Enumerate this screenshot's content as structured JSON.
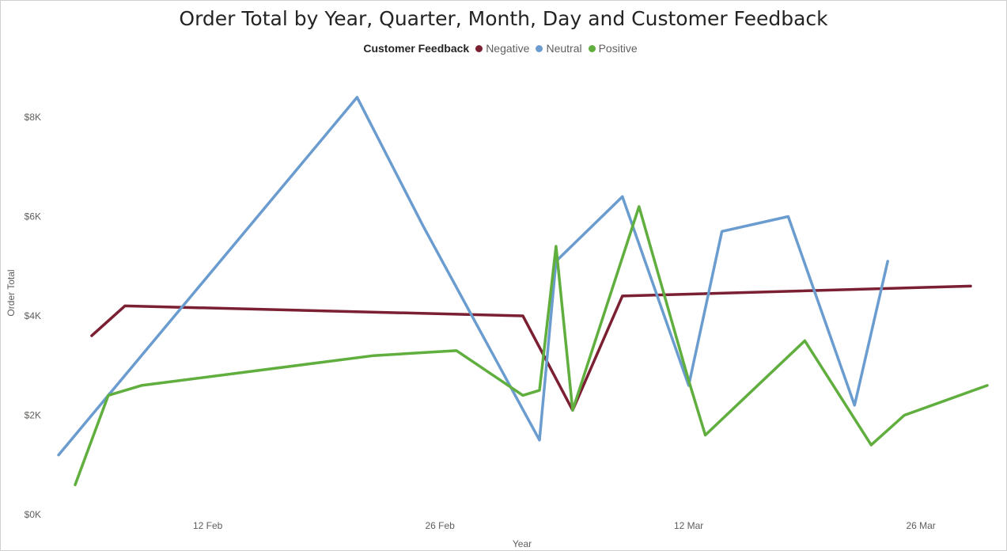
{
  "chart_data": {
    "type": "line",
    "title": "Order Total by Year, Quarter, Month, Day and Customer Feedback",
    "xlabel": "Year",
    "ylabel": "Order Total",
    "ylim": [
      0,
      8000
    ],
    "yticks": [
      {
        "value": 0,
        "label": "$0K"
      },
      {
        "value": 2000,
        "label": "$2K"
      },
      {
        "value": 4000,
        "label": "$4K"
      },
      {
        "value": 6000,
        "label": "$6K"
      },
      {
        "value": 8000,
        "label": "$8K"
      }
    ],
    "xlim": [
      "2024-02-03",
      "2024-03-30"
    ],
    "xticks": [
      {
        "date": "2024-02-12",
        "label": "12 Feb"
      },
      {
        "date": "2024-02-26",
        "label": "26 Feb"
      },
      {
        "date": "2024-03-12",
        "label": "12 Mar"
      },
      {
        "date": "2024-03-26",
        "label": "26 Mar"
      }
    ],
    "grid": false,
    "legend": {
      "title": "Customer Feedback",
      "position": "top-center"
    },
    "series": [
      {
        "name": "Negative",
        "color": "#7b1f32",
        "points": [
          {
            "date": "2024-02-05",
            "value": 3600
          },
          {
            "date": "2024-02-07",
            "value": 4200
          },
          {
            "date": "2024-03-02",
            "value": 4000
          },
          {
            "date": "2024-03-05",
            "value": 2100
          },
          {
            "date": "2024-03-08",
            "value": 4400
          },
          {
            "date": "2024-03-29",
            "value": 4600
          }
        ]
      },
      {
        "name": "Neutral",
        "color": "#6b9ccf",
        "points": [
          {
            "date": "2024-02-03",
            "value": 1200
          },
          {
            "date": "2024-02-21",
            "value": 8400
          },
          {
            "date": "2024-02-25",
            "value": 5800
          },
          {
            "date": "2024-03-03",
            "value": 1500
          },
          {
            "date": "2024-03-04",
            "value": 5100
          },
          {
            "date": "2024-03-08",
            "value": 6400
          },
          {
            "date": "2024-03-12",
            "value": 2600
          },
          {
            "date": "2024-03-14",
            "value": 5700
          },
          {
            "date": "2024-03-18",
            "value": 6000
          },
          {
            "date": "2024-03-22",
            "value": 2200
          },
          {
            "date": "2024-03-24",
            "value": 5100
          }
        ]
      },
      {
        "name": "Positive",
        "color": "#5fae3e",
        "points": [
          {
            "date": "2024-02-04",
            "value": 600
          },
          {
            "date": "2024-02-06",
            "value": 2400
          },
          {
            "date": "2024-02-08",
            "value": 2600
          },
          {
            "date": "2024-02-22",
            "value": 3200
          },
          {
            "date": "2024-02-27",
            "value": 3300
          },
          {
            "date": "2024-03-02",
            "value": 2400
          },
          {
            "date": "2024-03-03",
            "value": 2500
          },
          {
            "date": "2024-03-04",
            "value": 5400
          },
          {
            "date": "2024-03-05",
            "value": 2100
          },
          {
            "date": "2024-03-09",
            "value": 6200
          },
          {
            "date": "2024-03-12",
            "value": 2700
          },
          {
            "date": "2024-03-13",
            "value": 1600
          },
          {
            "date": "2024-03-19",
            "value": 3500
          },
          {
            "date": "2024-03-23",
            "value": 1400
          },
          {
            "date": "2024-03-25",
            "value": 2000
          },
          {
            "date": "2024-03-30",
            "value": 2600
          }
        ]
      }
    ]
  }
}
